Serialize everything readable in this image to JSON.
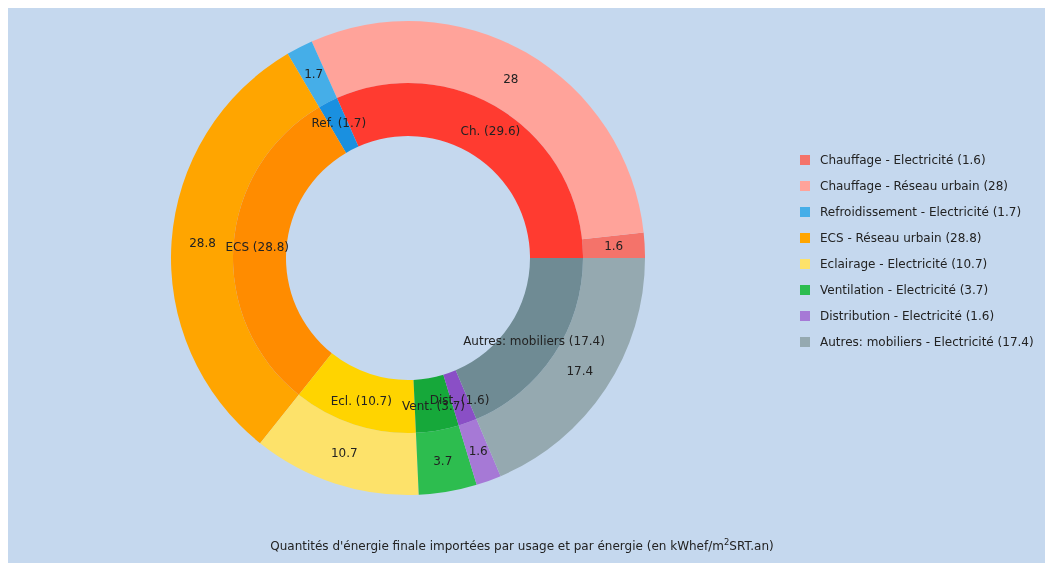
{
  "chart_data": [
    {
      "type": "donut",
      "title": "Quantités d'énergie finale importées par usage et par énergie (en kWhef/m$^{2}$SRT.an)",
      "categories": [
        "Chauffage - Electricité (1.6)",
        "Chauffage - Réseau urbain (28)",
        "Refroidissement - Electricité (1.7)",
        "ECS - Réseau urbain (28.8)",
        "Eclairage - Electricité (10.7)",
        "Ventilation - Electricité (3.7)",
        "Distribution - Electricité (1.6)",
        "Autres: mobiliers - Electricité (17.4)"
      ],
      "values": [
        1.6,
        28,
        1.7,
        28.8,
        10.7,
        3.7,
        1.6,
        17.4
      ],
      "colors": [
        "#f4736a",
        "#ffa39a",
        "#45aee8",
        "#ffa500",
        "#fde26a",
        "#2dbd4f",
        "#a679d6",
        "#95a9b0"
      ],
      "data_labels": true,
      "legend": "right"
    },
    {
      "type": "donut",
      "categories": [
        "Ch. (29.6)",
        "Ref. (1.7)",
        "ECS (28.8)",
        "Ecl. (10.7)",
        "Vent. (3.7)",
        "Dist. (1.6)",
        "Autres: mobiliers (17.4)"
      ],
      "values": [
        29.6,
        1.7,
        28.8,
        10.7,
        3.7,
        1.6,
        17.4
      ],
      "colors": [
        "#ff3b30",
        "#1a90e0",
        "#ff8c00",
        "#ffd400",
        "#16a83a",
        "#8a4fc6",
        "#6f8b94"
      ]
    }
  ]
}
